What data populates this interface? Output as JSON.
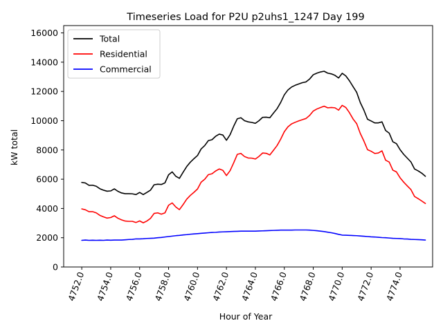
{
  "chart_data": {
    "type": "line",
    "title": "Timeseries Load for P2U p2uhs1_1247  Day 199",
    "xlabel": "Hour of Year",
    "ylabel": "kW total",
    "xlim": [
      4750.75,
      4776.25
    ],
    "ylim": [
      0,
      16500
    ],
    "x_ticks": [
      4752.0,
      4754.0,
      4756.0,
      4758.0,
      4760.0,
      4762.0,
      4764.0,
      4766.0,
      4768.0,
      4770.0,
      4772.0,
      4774.0
    ],
    "x_tick_labels": [
      "4752.0",
      "4754.0",
      "4756.0",
      "4758.0",
      "4760.0",
      "4762.0",
      "4764.0",
      "4766.0",
      "4768.0",
      "4770.0",
      "4772.0",
      "4774.0"
    ],
    "y_ticks": [
      0,
      2000,
      4000,
      6000,
      8000,
      10000,
      12000,
      14000,
      16000
    ],
    "y_tick_labels": [
      "0",
      "2000",
      "4000",
      "6000",
      "8000",
      "10000",
      "12000",
      "14000",
      "16000"
    ],
    "legend_position": "top-left",
    "x_start": 4752.0,
    "x_step": 0.25,
    "series": [
      {
        "name": "Total",
        "color": "#000000",
        "values": [
          5780,
          5740,
          5580,
          5590,
          5520,
          5350,
          5250,
          5180,
          5200,
          5340,
          5170,
          5060,
          5010,
          5010,
          5000,
          4950,
          5100,
          4950,
          5100,
          5250,
          5620,
          5660,
          5640,
          5750,
          6300,
          6500,
          6200,
          6060,
          6470,
          6860,
          7160,
          7400,
          7620,
          8070,
          8300,
          8640,
          8700,
          8930,
          9080,
          9020,
          8660,
          9040,
          9620,
          10130,
          10200,
          10000,
          9920,
          9880,
          9820,
          10000,
          10230,
          10240,
          10200,
          10520,
          10820,
          11250,
          11770,
          12100,
          12300,
          12420,
          12510,
          12600,
          12650,
          12850,
          13140,
          13250,
          13330,
          13380,
          13250,
          13200,
          13100,
          12920,
          13240,
          13060,
          12730,
          12330,
          11940,
          11240,
          10720,
          10100,
          9980,
          9850,
          9850,
          9920,
          9330,
          9150,
          8560,
          8430,
          8020,
          7700,
          7440,
          7180,
          6700,
          6570,
          6410,
          6200
        ]
      },
      {
        "name": "Residential",
        "color": "#ff0000",
        "values": [
          3970,
          3910,
          3780,
          3780,
          3700,
          3530,
          3430,
          3340,
          3380,
          3500,
          3330,
          3220,
          3140,
          3120,
          3120,
          3040,
          3150,
          3020,
          3140,
          3320,
          3660,
          3700,
          3610,
          3700,
          4220,
          4380,
          4100,
          3920,
          4260,
          4630,
          4890,
          5100,
          5330,
          5800,
          6000,
          6310,
          6370,
          6560,
          6700,
          6610,
          6250,
          6580,
          7120,
          7700,
          7760,
          7550,
          7450,
          7440,
          7380,
          7560,
          7790,
          7770,
          7660,
          7980,
          8300,
          8740,
          9250,
          9580,
          9780,
          9890,
          9990,
          10070,
          10150,
          10360,
          10660,
          10800,
          10900,
          10990,
          10880,
          10900,
          10880,
          10720,
          11050,
          10900,
          10550,
          10120,
          9800,
          9130,
          8610,
          8020,
          7910,
          7760,
          7790,
          7940,
          7300,
          7170,
          6620,
          6500,
          6100,
          5800,
          5540,
          5290,
          4820,
          4670,
          4510,
          4340
        ]
      },
      {
        "name": "Commercial",
        "color": "#0000ff",
        "values": [
          1820,
          1840,
          1820,
          1830,
          1820,
          1830,
          1820,
          1840,
          1830,
          1840,
          1840,
          1840,
          1860,
          1880,
          1890,
          1920,
          1920,
          1930,
          1950,
          1960,
          1970,
          2000,
          2020,
          2050,
          2080,
          2110,
          2140,
          2160,
          2190,
          2210,
          2240,
          2260,
          2280,
          2300,
          2320,
          2340,
          2360,
          2370,
          2390,
          2400,
          2410,
          2420,
          2430,
          2440,
          2450,
          2450,
          2450,
          2450,
          2450,
          2460,
          2470,
          2480,
          2490,
          2500,
          2510,
          2520,
          2520,
          2520,
          2520,
          2530,
          2530,
          2530,
          2530,
          2520,
          2500,
          2480,
          2450,
          2420,
          2380,
          2340,
          2290,
          2230,
          2180,
          2170,
          2160,
          2150,
          2140,
          2120,
          2100,
          2080,
          2060,
          2050,
          2030,
          2010,
          2000,
          1980,
          1960,
          1950,
          1940,
          1920,
          1910,
          1890,
          1880,
          1870,
          1860,
          1840
        ]
      }
    ]
  }
}
